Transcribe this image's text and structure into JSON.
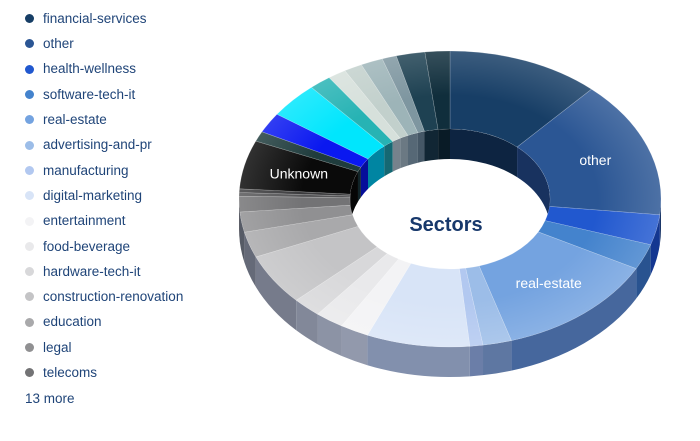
{
  "page": {
    "background": "#ffffff"
  },
  "legend": {
    "text_color": "#1F4478",
    "more_label": "13 more",
    "items": [
      {
        "label": "financial-services",
        "color": "#173E66"
      },
      {
        "label": "other",
        "color": "#2B5694"
      },
      {
        "label": "health-wellness",
        "color": "#2158CF"
      },
      {
        "label": "software-tech-it",
        "color": "#4483CD"
      },
      {
        "label": "real-estate",
        "color": "#74A3E0"
      },
      {
        "label": "advertising-and-pr",
        "color": "#9CBDE8"
      },
      {
        "label": "manufacturing",
        "color": "#B2C8F0"
      },
      {
        "label": "digital-marketing",
        "color": "#D8E4F7"
      },
      {
        "label": "entertainment",
        "color": "#F3F3F5"
      },
      {
        "label": "food-beverage",
        "color": "#E9E9EB"
      },
      {
        "label": "hardware-tech-it",
        "color": "#D8D8DA"
      },
      {
        "label": "construction-renovation",
        "color": "#C4C4C6"
      },
      {
        "label": "education",
        "color": "#A9A9AB"
      },
      {
        "label": "legal",
        "color": "#909092"
      },
      {
        "label": "telecoms",
        "color": "#737375"
      }
    ]
  },
  "chart_data": {
    "type": "pie",
    "subtype": "donut-3d",
    "center_label": "Sectors",
    "center_label_color": "#17386B",
    "slice_label_color": "#FFFFFF",
    "legend_position": "left",
    "start_position": "top-clockwise",
    "segments": [
      {
        "label": "financial-services",
        "value_pct": 11.7,
        "color": "#173E66"
      },
      {
        "label": "other",
        "value_pct": 15.0,
        "color": "#2B5694",
        "show_label": true
      },
      {
        "label": "health-wellness",
        "value_pct": 3.3,
        "color": "#2158CF"
      },
      {
        "label": "software-tech-it",
        "value_pct": 2.8,
        "color": "#4483CD"
      },
      {
        "label": "real-estate",
        "value_pct": 12.5,
        "color": "#74A3E0",
        "show_label": true
      },
      {
        "label": "advertising-and-pr",
        "value_pct": 2.2,
        "color": "#9CBDE8"
      },
      {
        "label": "manufacturing",
        "value_pct": 1.0,
        "color": "#B2C8F0"
      },
      {
        "label": "digital-marketing",
        "value_pct": 7.9,
        "color": "#D8E4F7"
      },
      {
        "label": "entertainment",
        "value_pct": 2.2,
        "color": "#F3F3F5"
      },
      {
        "label": "food-beverage",
        "value_pct": 2.2,
        "color": "#E9E9EB"
      },
      {
        "label": "hardware-tech-it",
        "value_pct": 2.2,
        "color": "#D8D8DA"
      },
      {
        "label": "construction-renovation",
        "value_pct": 5.6,
        "color": "#C4C4C6"
      },
      {
        "label": "education",
        "value_pct": 2.8,
        "color": "#A9A9AB"
      },
      {
        "label": "legal",
        "value_pct": 2.2,
        "color": "#909092"
      },
      {
        "label": "telecoms",
        "value_pct": 1.7,
        "color": "#737375"
      },
      {
        "label": "",
        "value_pct": 0.4,
        "color": "#565658"
      },
      {
        "label": "",
        "value_pct": 0.4,
        "color": "#3C3C3E"
      },
      {
        "label": "Unknown",
        "value_pct": 5.3,
        "color": "#0A0A0A",
        "show_label": true
      },
      {
        "label": "",
        "value_pct": 1.1,
        "color": "#1F3C3D"
      },
      {
        "label": "",
        "value_pct": 2.2,
        "color": "#0A18F0"
      },
      {
        "label": "",
        "value_pct": 3.9,
        "color": "#00E6FD"
      },
      {
        "label": "",
        "value_pct": 1.7,
        "color": "#27B3B4"
      },
      {
        "label": "",
        "value_pct": 1.4,
        "color": "#D6E0DB"
      },
      {
        "label": "",
        "value_pct": 1.4,
        "color": "#C2D0CC"
      },
      {
        "label": "",
        "value_pct": 1.7,
        "color": "#9DB4B8"
      },
      {
        "label": "",
        "value_pct": 1.1,
        "color": "#7E96A0"
      },
      {
        "label": "",
        "value_pct": 2.2,
        "color": "#1E4152"
      },
      {
        "label": "",
        "value_pct": 1.9,
        "color": "#102E3C"
      }
    ]
  }
}
